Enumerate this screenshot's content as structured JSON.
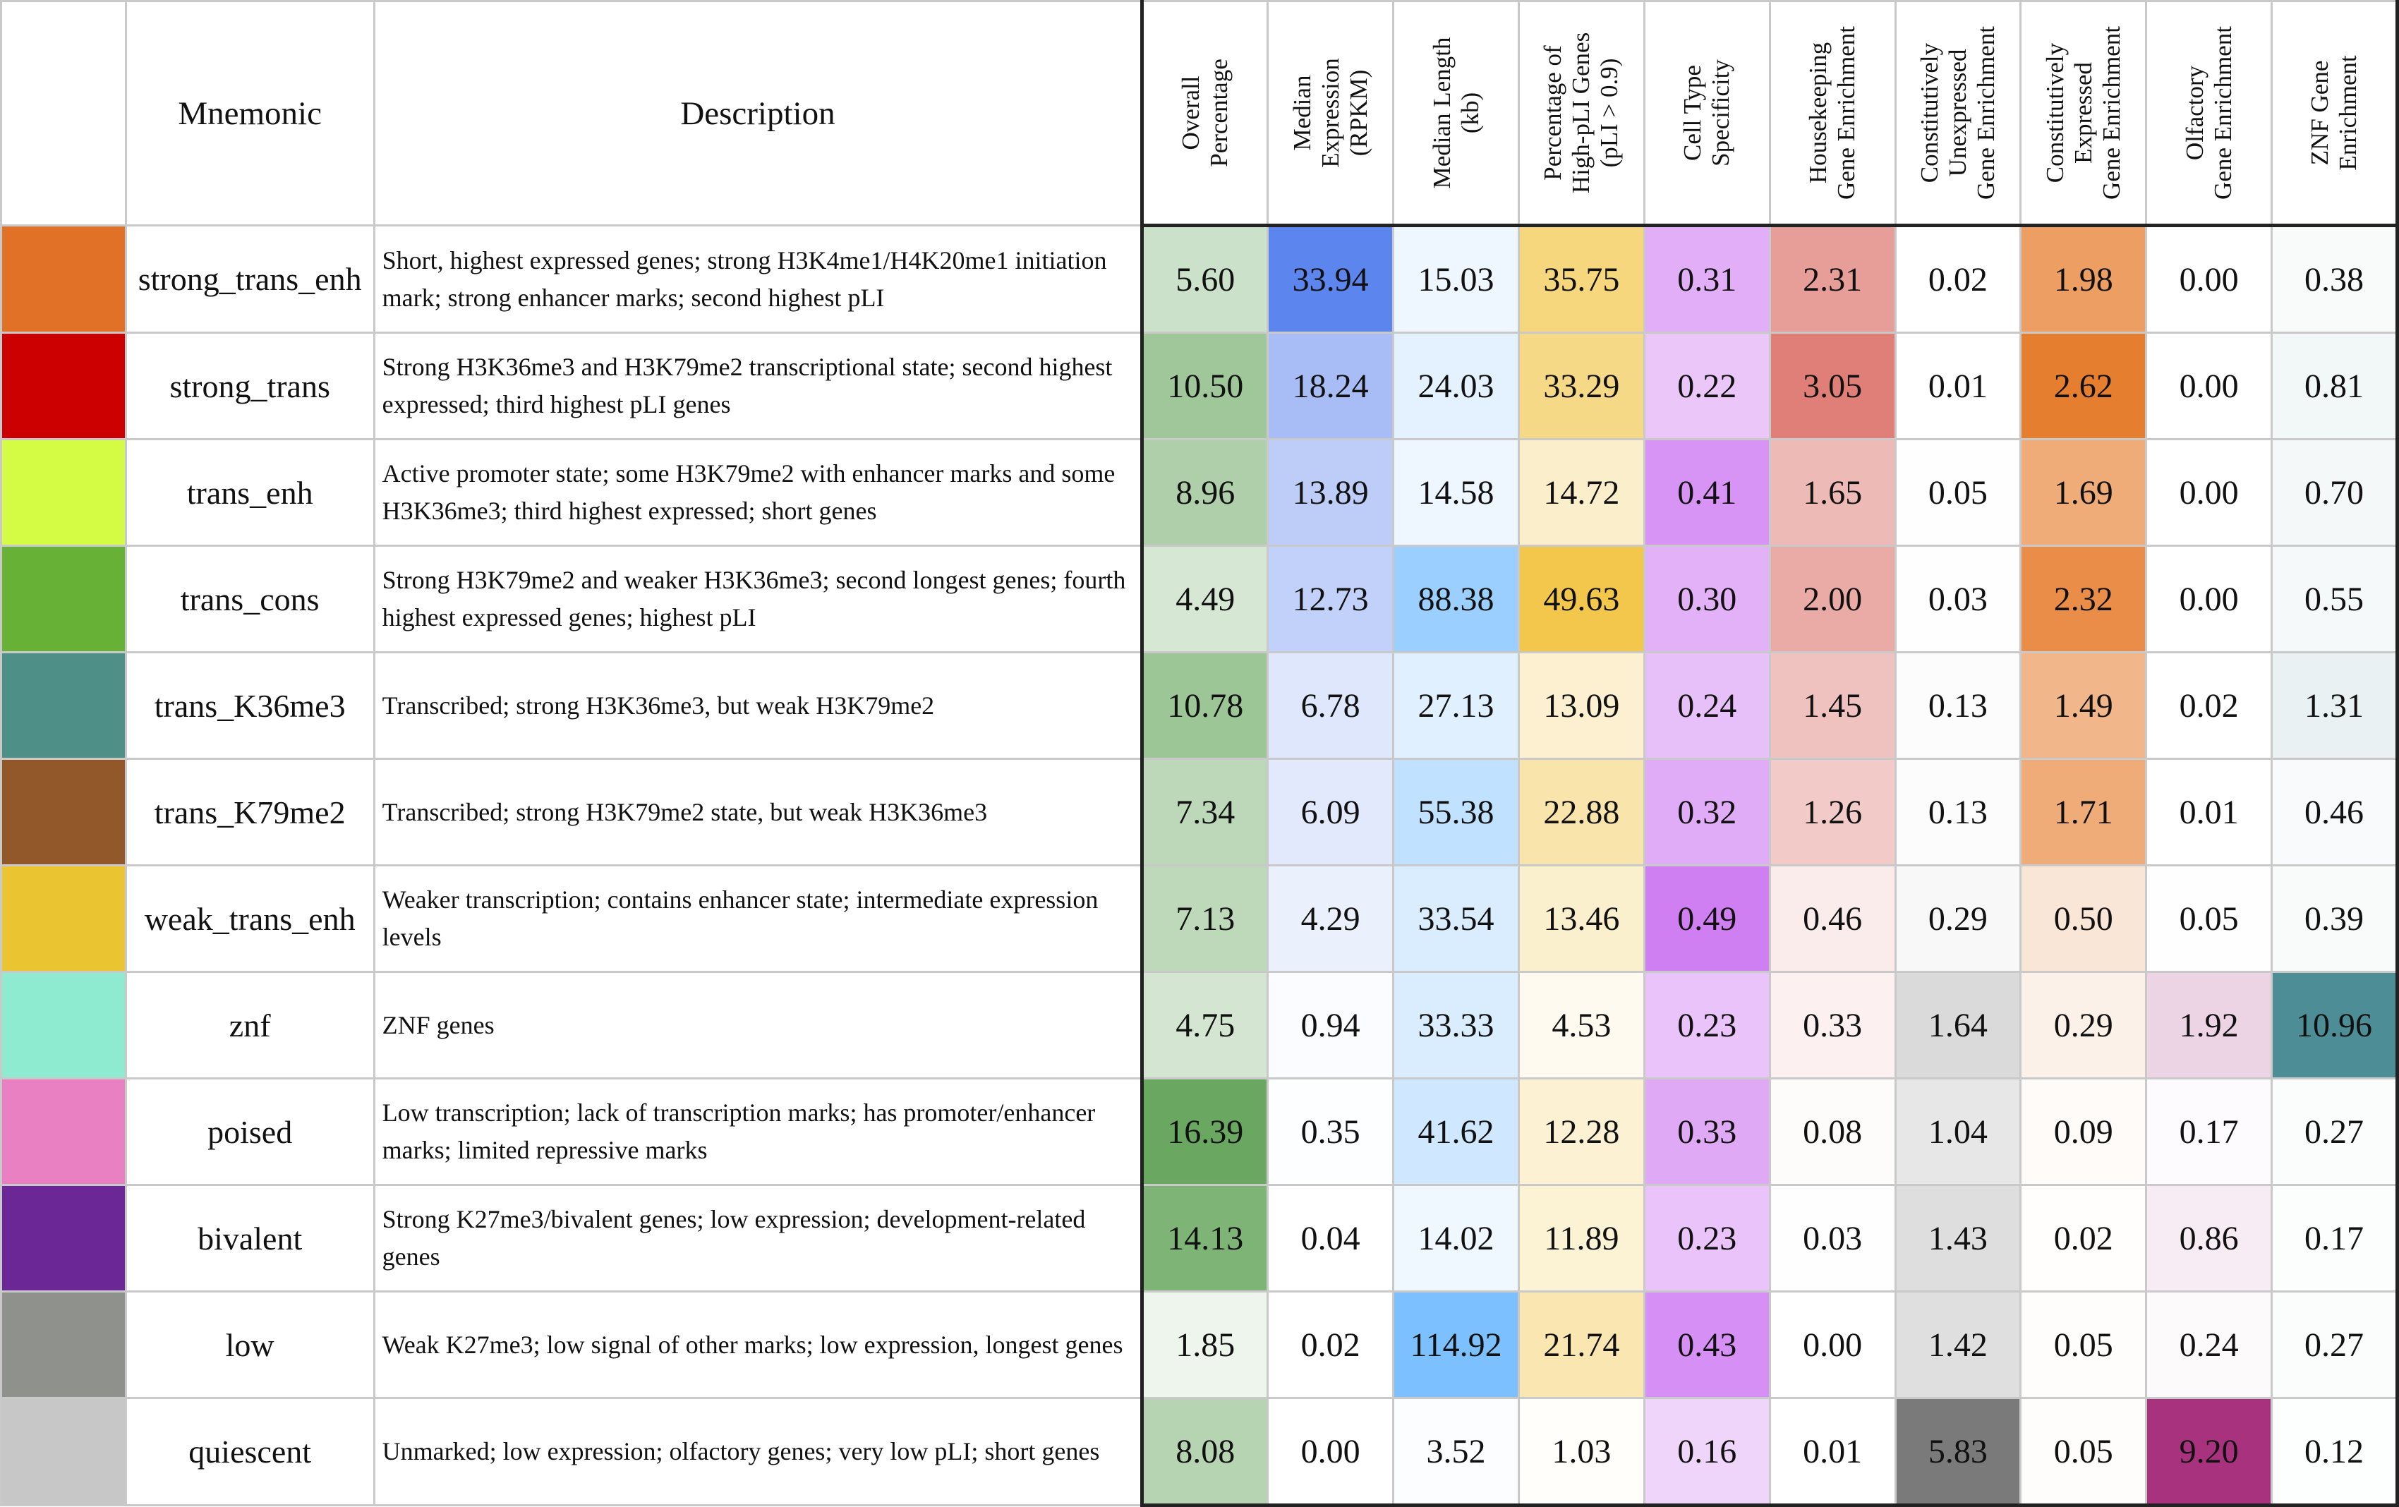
{
  "chart_data": {
    "type": "table",
    "header": {
      "mnemonic": "Mnemonic",
      "description": "Description",
      "metric_headers": [
        [
          "Overall",
          "Percentage"
        ],
        [
          "Median",
          "Expression",
          "(RPKM)"
        ],
        [
          "Median Length",
          "(kb)"
        ],
        [
          "Percentage of",
          "High-pLI Genes",
          "(pLI > 0.9)"
        ],
        [
          "Cell Type",
          "Specificity"
        ],
        [
          "Housekeeping",
          "Gene Enrichment"
        ],
        [
          "Constitutively",
          "Unexpressed",
          "Gene Enrichment"
        ],
        [
          "Constitutively",
          "Expressed",
          "Gene Enrichment"
        ],
        [
          "Olfactory",
          "Gene Enrichment"
        ],
        [
          "ZNF Gene",
          "Enrichment"
        ]
      ]
    },
    "column_scale_colors": [
      "#6aa861",
      "#5d85ee",
      "#7cc0ff",
      "#f2c74c",
      "#d07ff2",
      "#df7f78",
      "#7a7a7a",
      "#e67e30",
      "#a8327e",
      "#4d8d95"
    ],
    "column_max": [
      16.39,
      33.94,
      114.92,
      49.63,
      0.49,
      3.05,
      5.83,
      2.62,
      9.2,
      10.96
    ],
    "rows": [
      {
        "color": "#e07126",
        "mnemonic": "strong_trans_enh",
        "description": "Short, highest expressed genes; strong H3K4me1/H4K20me1 initiation mark; strong enhancer marks; second highest pLI",
        "values": [
          "5.60",
          "33.94",
          "15.03",
          "35.75",
          "0.31",
          "2.31",
          "0.02",
          "1.98",
          "0.00",
          "0.38"
        ]
      },
      {
        "color": "#cc0000",
        "mnemonic": "strong_trans",
        "description": "Strong H3K36me3 and H3K79me2 transcriptional state; second highest expressed; third highest pLI genes",
        "values": [
          "10.50",
          "18.24",
          "24.03",
          "33.29",
          "0.22",
          "3.05",
          "0.01",
          "2.62",
          "0.00",
          "0.81"
        ]
      },
      {
        "color": "#d4fc45",
        "mnemonic": "trans_enh",
        "description": "Active promoter state; some H3K79me2 with enhancer marks and some H3K36me3; third highest expressed; short genes",
        "values": [
          "8.96",
          "13.89",
          "14.58",
          "14.72",
          "0.41",
          "1.65",
          "0.05",
          "1.69",
          "0.00",
          "0.70"
        ]
      },
      {
        "color": "#67b136",
        "mnemonic": "trans_cons",
        "description": "Strong H3K79me2 and weaker H3K36me3; second longest genes; fourth highest expressed genes; highest pLI",
        "values": [
          "4.49",
          "12.73",
          "88.38",
          "49.63",
          "0.30",
          "2.00",
          "0.03",
          "2.32",
          "0.00",
          "0.55"
        ]
      },
      {
        "color": "#4e8f87",
        "mnemonic": "trans_K36me3",
        "description": "Transcribed; strong H3K36me3, but weak H3K79me2",
        "values": [
          "10.78",
          "6.78",
          "27.13",
          "13.09",
          "0.24",
          "1.45",
          "0.13",
          "1.49",
          "0.02",
          "1.31"
        ]
      },
      {
        "color": "#93582a",
        "mnemonic": "trans_K79me2",
        "description": "Transcribed; strong H3K79me2 state, but weak H3K36me3",
        "values": [
          "7.34",
          "6.09",
          "55.38",
          "22.88",
          "0.32",
          "1.26",
          "0.13",
          "1.71",
          "0.01",
          "0.46"
        ]
      },
      {
        "color": "#ebc432",
        "mnemonic": "weak_trans_enh",
        "description": "Weaker transcription; contains enhancer state; intermediate expression levels",
        "values": [
          "7.13",
          "4.29",
          "33.54",
          "13.46",
          "0.49",
          "0.46",
          "0.29",
          "0.50",
          "0.05",
          "0.39"
        ]
      },
      {
        "color": "#8eebd0",
        "mnemonic": "znf",
        "description": "ZNF genes",
        "values": [
          "4.75",
          "0.94",
          "33.33",
          "4.53",
          "0.23",
          "0.33",
          "1.64",
          "0.29",
          "1.92",
          "10.96"
        ]
      },
      {
        "color": "#e880c1",
        "mnemonic": "poised",
        "description": "Low transcription; lack of transcription marks; has promoter/enhancer marks; limited repressive marks",
        "values": [
          "16.39",
          "0.35",
          "41.62",
          "12.28",
          "0.33",
          "0.08",
          "1.04",
          "0.09",
          "0.17",
          "0.27"
        ]
      },
      {
        "color": "#6c2797",
        "mnemonic": "bivalent",
        "description": "Strong K27me3/bivalent genes; low expression; development-related genes",
        "values": [
          "14.13",
          "0.04",
          "14.02",
          "11.89",
          "0.23",
          "0.03",
          "1.43",
          "0.02",
          "0.86",
          "0.17"
        ]
      },
      {
        "color": "#8f918d",
        "mnemonic": "low",
        "description": "Weak K27me3; low signal of other marks; low expression, longest genes",
        "values": [
          "1.85",
          "0.02",
          "114.92",
          "21.74",
          "0.43",
          "0.00",
          "1.42",
          "0.05",
          "0.24",
          "0.27"
        ]
      },
      {
        "color": "#c7c7c7",
        "mnemonic": "quiescent",
        "description": "Unmarked; low expression; olfactory genes; very low pLI; short genes",
        "values": [
          "8.08",
          "0.00",
          "3.52",
          "1.03",
          "0.16",
          "0.01",
          "5.83",
          "0.05",
          "9.20",
          "0.12"
        ]
      }
    ]
  }
}
